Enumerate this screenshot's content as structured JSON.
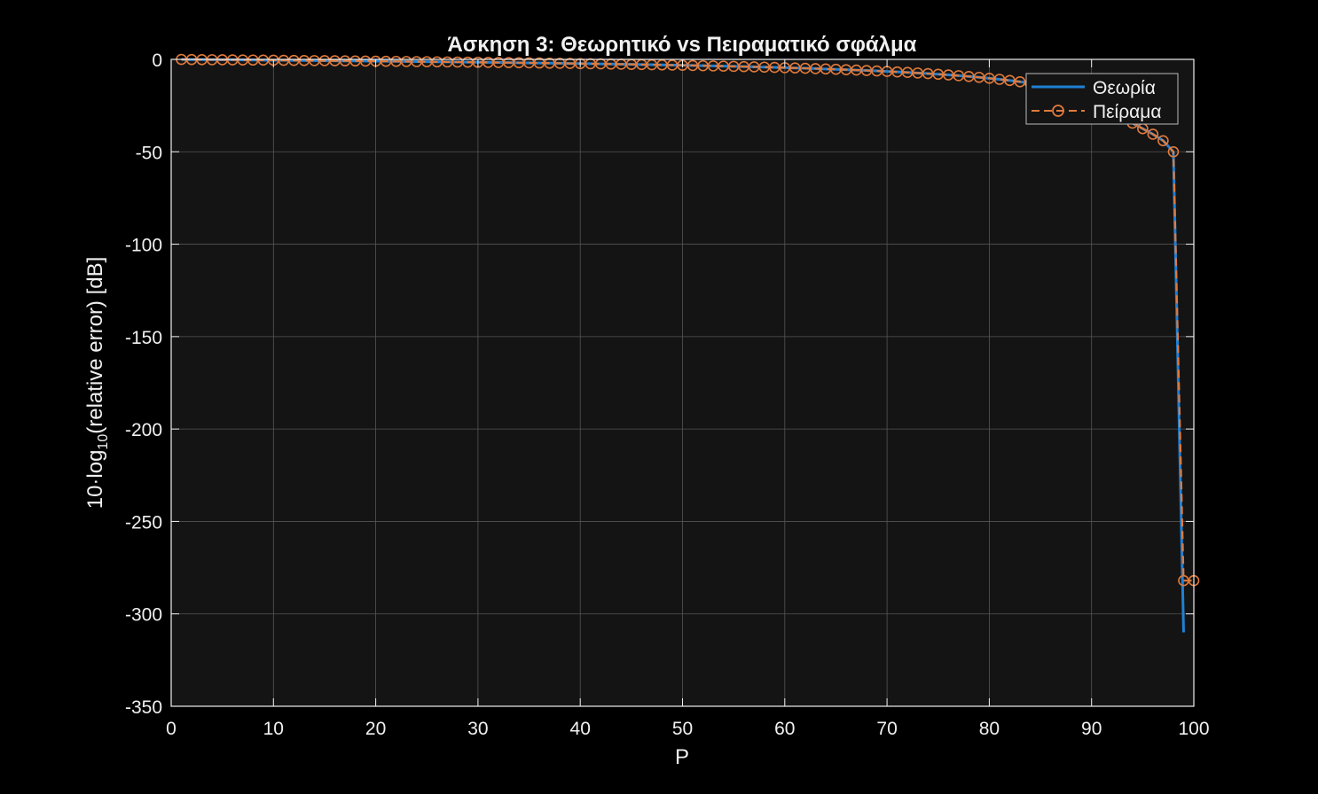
{
  "chart_data": {
    "type": "line",
    "title": "Άσκηση 3: Θεωρητικό vs Πειραματικό σφάλμα",
    "xlabel": "P",
    "ylabel_prefix": "10·log",
    "ylabel_sub": "10",
    "ylabel_suffix": "(relative  error)  [dB]",
    "xlim": [
      0,
      100
    ],
    "ylim": [
      -350,
      0
    ],
    "xticks": [
      0,
      10,
      20,
      30,
      40,
      50,
      60,
      70,
      80,
      90,
      100
    ],
    "yticks": [
      0,
      -50,
      -100,
      -150,
      -200,
      -250,
      -300,
      -350
    ],
    "grid": true,
    "legend_location": "top-right",
    "background": "#141414",
    "colors": {
      "theory": "#1f80d4",
      "experiment": "#e07a3c",
      "grid": "#555555",
      "axes": "#f0f0f0"
    },
    "series": [
      {
        "name": "Θεωρία",
        "style": "solid",
        "p_start": 1,
        "p_step": 1,
        "values": [
          -0.04,
          -0.09,
          -0.13,
          -0.18,
          -0.22,
          -0.27,
          -0.31,
          -0.36,
          -0.41,
          -0.46,
          -0.51,
          -0.56,
          -0.61,
          -0.66,
          -0.71,
          -0.76,
          -0.81,
          -0.86,
          -0.92,
          -0.97,
          -1.03,
          -1.08,
          -1.14,
          -1.2,
          -1.26,
          -1.32,
          -1.38,
          -1.44,
          -1.5,
          -1.56,
          -1.63,
          -1.7,
          -1.76,
          -1.83,
          -1.9,
          -1.97,
          -2.05,
          -2.12,
          -2.2,
          -2.28,
          -2.36,
          -2.44,
          -2.53,
          -2.62,
          -2.71,
          -2.8,
          -2.89,
          -2.99,
          -3.09,
          -3.2,
          -3.31,
          -3.42,
          -3.54,
          -3.66,
          -3.78,
          -3.91,
          -4.05,
          -4.19,
          -4.34,
          -4.49,
          -4.66,
          -4.82,
          -5.0,
          -5.19,
          -5.38,
          -5.58,
          -5.8,
          -6.02,
          -6.26,
          -6.51,
          -6.78,
          -7.06,
          -7.37,
          -7.69,
          -8.04,
          -8.41,
          -8.81,
          -9.24,
          -9.71,
          -10.22,
          -10.79,
          -11.42,
          -12.12,
          -12.91,
          -13.81,
          -14.84,
          -16.05,
          -17.49,
          -19.24,
          -21.43,
          -24.29,
          -28.26,
          -31.5,
          -34.5,
          -37.5,
          -40.5,
          -44.0,
          -50.0,
          -310.0
        ]
      },
      {
        "name": "Πείραμα",
        "style": "dashed-circle",
        "p_start": 1,
        "p_step": 1,
        "values": [
          -0.04,
          -0.09,
          -0.13,
          -0.18,
          -0.22,
          -0.27,
          -0.31,
          -0.36,
          -0.41,
          -0.46,
          -0.51,
          -0.56,
          -0.61,
          -0.66,
          -0.71,
          -0.76,
          -0.81,
          -0.86,
          -0.92,
          -0.97,
          -1.03,
          -1.08,
          -1.14,
          -1.2,
          -1.26,
          -1.32,
          -1.38,
          -1.44,
          -1.5,
          -1.56,
          -1.63,
          -1.7,
          -1.76,
          -1.83,
          -1.9,
          -1.97,
          -2.05,
          -2.12,
          -2.2,
          -2.28,
          -2.36,
          -2.44,
          -2.53,
          -2.62,
          -2.71,
          -2.8,
          -2.89,
          -2.99,
          -3.09,
          -3.2,
          -3.31,
          -3.42,
          -3.54,
          -3.66,
          -3.78,
          -3.91,
          -4.05,
          -4.19,
          -4.34,
          -4.49,
          -4.66,
          -4.82,
          -5.0,
          -5.19,
          -5.38,
          -5.58,
          -5.8,
          -6.02,
          -6.26,
          -6.51,
          -6.78,
          -7.06,
          -7.37,
          -7.69,
          -8.04,
          -8.41,
          -8.81,
          -9.24,
          -9.71,
          -10.22,
          -10.79,
          -11.42,
          -12.12,
          -12.91,
          -13.81,
          -14.84,
          -16.05,
          -17.49,
          -19.24,
          -21.43,
          -24.29,
          -28.26,
          -31.5,
          -34.5,
          -37.5,
          -40.5,
          -44.0,
          -50.0,
          -282.0,
          -282.0
        ]
      }
    ]
  }
}
